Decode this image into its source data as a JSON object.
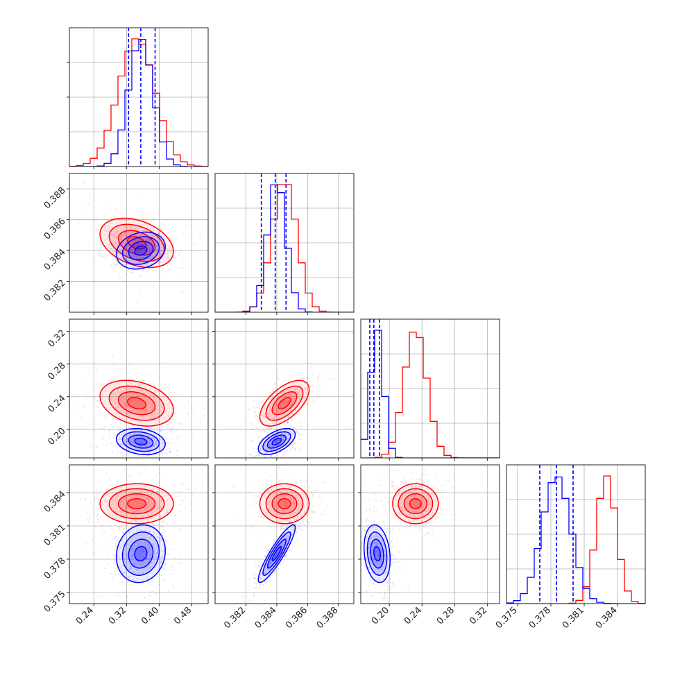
{
  "chart_data": {
    "type": "corner",
    "title": "",
    "dimensions": 4,
    "grid": true,
    "series": [
      {
        "color": "#ff0000",
        "means": [
          0.345,
          0.3845,
          0.232,
          0.383
        ],
        "sds": [
          0.045,
          0.0008,
          0.014,
          0.0009
        ],
        "corr": {
          "1-0": -0.35,
          "2-0": -0.3,
          "2-1": 0.6,
          "3-0": 0.0,
          "3-1": 0.0,
          "3-2": 0.0
        }
      },
      {
        "color": "#0000ff",
        "means": [
          0.355,
          0.384,
          0.185,
          0.3785
        ],
        "sds": [
          0.03,
          0.0006,
          0.008,
          0.0013
        ],
        "corr": {
          "1-0": 0.2,
          "2-0": -0.2,
          "2-1": 0.55,
          "3-0": 0.1,
          "3-1": 0.9,
          "3-2": -0.2
        }
      }
    ],
    "quantile_lines": {
      "color": "#0000ff",
      "values": [
        [
          0.325,
          0.355,
          0.39
        ],
        [
          0.383,
          0.3839,
          0.3846
        ],
        [
          0.176,
          0.181,
          0.188
        ],
        [
          0.377,
          0.3785,
          0.38
        ]
      ]
    },
    "axes": [
      {
        "range": [
          0.18,
          0.52
        ],
        "ticks": [
          0.24,
          0.32,
          0.4,
          0.48
        ],
        "tick_labels": [
          "0.24",
          "0.32",
          "0.40",
          "0.48"
        ]
      },
      {
        "range": [
          0.38,
          0.389
        ],
        "ticks": [
          0.382,
          0.384,
          0.386,
          0.388
        ],
        "tick_labels": [
          "0.382",
          "0.384",
          "0.386",
          "0.388"
        ]
      },
      {
        "range": [
          0.165,
          0.335
        ],
        "ticks": [
          0.2,
          0.24,
          0.28,
          0.32
        ],
        "tick_labels": [
          "0.20",
          "0.24",
          "0.28",
          "0.32"
        ]
      },
      {
        "range": [
          0.374,
          0.3865
        ],
        "ticks": [
          0.375,
          0.378,
          0.381,
          0.384
        ],
        "tick_labels": [
          "0.375",
          "0.378",
          "0.381",
          "0.384"
        ]
      }
    ]
  }
}
